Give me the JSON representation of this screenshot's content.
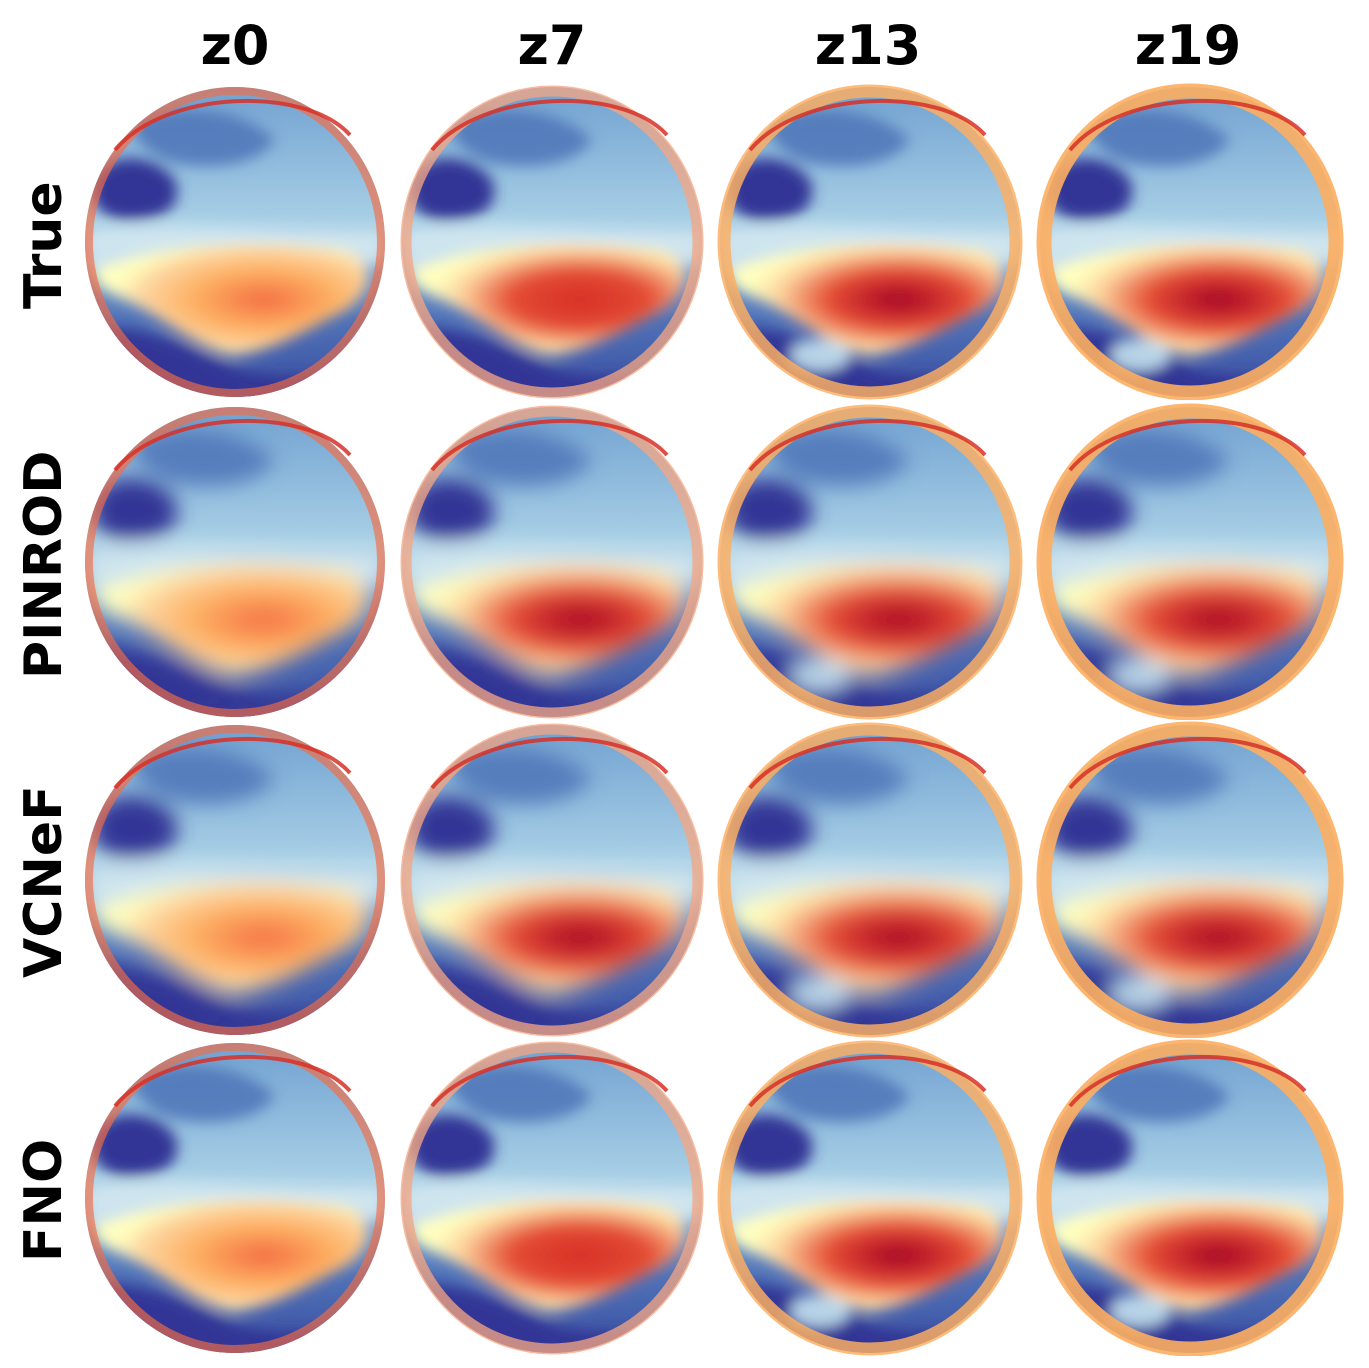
{
  "columns": [
    "z0",
    "z7",
    "z13",
    "z19"
  ],
  "rows": [
    "True",
    "PINROD",
    "VCNeF",
    "FNO"
  ],
  "colormap": {
    "name": "RdYlBu_r",
    "low": "#313695",
    "mid_low": "#74add1",
    "mid": "#ffffbf",
    "mid_high": "#f46d43",
    "high": "#a50026"
  },
  "panels": [
    [
      {
        "intensity": 0.55,
        "rim": 0.3,
        "noise": true
      },
      {
        "intensity": 0.85,
        "rim": 0.6,
        "noise": true
      },
      {
        "intensity": 0.95,
        "rim": 0.8,
        "noise": true
      },
      {
        "intensity": 1.0,
        "rim": 1.0,
        "noise": true
      }
    ],
    [
      {
        "intensity": 0.55,
        "rim": 0.3,
        "noise": false
      },
      {
        "intensity": 0.9,
        "rim": 0.6,
        "noise": false
      },
      {
        "intensity": 0.95,
        "rim": 0.8,
        "noise": false
      },
      {
        "intensity": 1.0,
        "rim": 1.0,
        "noise": false
      }
    ],
    [
      {
        "intensity": 0.55,
        "rim": 0.3,
        "noise": false
      },
      {
        "intensity": 0.9,
        "rim": 0.6,
        "noise": false
      },
      {
        "intensity": 0.95,
        "rim": 0.8,
        "noise": false
      },
      {
        "intensity": 1.0,
        "rim": 1.0,
        "noise": false
      }
    ],
    [
      {
        "intensity": 0.5,
        "rim": 0.3,
        "noise": true
      },
      {
        "intensity": 0.8,
        "rim": 0.6,
        "noise": true
      },
      {
        "intensity": 0.95,
        "rim": 0.8,
        "noise": true
      },
      {
        "intensity": 1.0,
        "rim": 1.0,
        "noise": true
      }
    ]
  ]
}
